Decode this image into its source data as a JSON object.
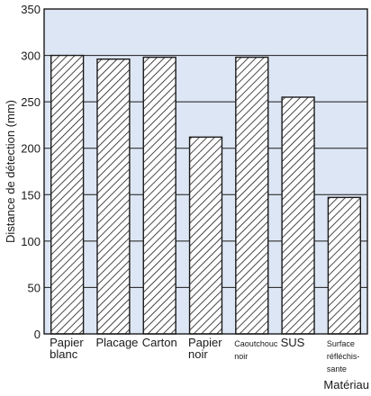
{
  "chart_data": {
    "type": "bar",
    "categories": [
      [
        "Papier",
        "blanc"
      ],
      [
        "Placage"
      ],
      [
        "Carton"
      ],
      [
        "Papier",
        "noir"
      ],
      [
        "Caoutchouc",
        "noir"
      ],
      [
        "SUS"
      ],
      [
        "Surface",
        "réfléchis-",
        "sante"
      ]
    ],
    "values": [
      300,
      296,
      298,
      212,
      298,
      255,
      147
    ],
    "title": "",
    "xlabel": "Matériau",
    "ylabel": "Distance de détection (mm)",
    "ylim": [
      0,
      350
    ],
    "yticks": [
      0,
      50,
      100,
      150,
      200,
      250,
      300,
      350
    ],
    "grid": true,
    "legend": "none",
    "colors": {
      "plot_background": "#dde6f4",
      "bar_fill": "#ffffff",
      "hatch": "#1a1a1a",
      "grid": "#1a1a1a",
      "text": "#1a1a1a"
    }
  }
}
